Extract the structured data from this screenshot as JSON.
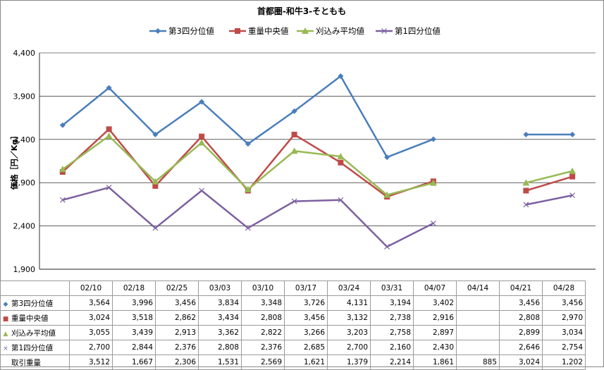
{
  "chart_data": {
    "type": "line",
    "title": "首都圏-和牛3-そともも",
    "ylabel": "価格［円／Kg］",
    "ylim": [
      1900,
      4400
    ],
    "yticks": [
      1900,
      2400,
      2900,
      3400,
      3900,
      4400
    ],
    "ytick_labels": [
      "1,900",
      "2,400",
      "2,900",
      "3,400",
      "3,900",
      "4,400"
    ],
    "grid": "horizontal",
    "legend_position": "top",
    "categories": [
      "02/10",
      "02/18",
      "02/25",
      "03/03",
      "03/10",
      "03/17",
      "03/24",
      "03/31",
      "04/07",
      "04/14",
      "04/21",
      "04/28"
    ],
    "series": [
      {
        "name": "第3四分位値",
        "color": "#4a7ebb",
        "marker": "diamond",
        "values": [
          3564,
          3996,
          3456,
          3834,
          3348,
          3726,
          4131,
          3194,
          3402,
          null,
          3456,
          3456
        ],
        "display": [
          "3,564",
          "3,996",
          "3,456",
          "3,834",
          "3,348",
          "3,726",
          "4,131",
          "3,194",
          "3,402",
          "",
          "3,456",
          "3,456"
        ]
      },
      {
        "name": "重量中央値",
        "color": "#be4b48",
        "marker": "square",
        "values": [
          3024,
          3518,
          2862,
          3434,
          2808,
          3456,
          3132,
          2738,
          2916,
          null,
          2808,
          2970
        ],
        "display": [
          "3,024",
          "3,518",
          "2,862",
          "3,434",
          "2,808",
          "3,456",
          "3,132",
          "2,738",
          "2,916",
          "",
          "2,808",
          "2,970"
        ]
      },
      {
        "name": "刈込み平均値",
        "color": "#98b954",
        "marker": "triangle",
        "values": [
          3055,
          3439,
          2913,
          3362,
          2822,
          3266,
          3203,
          2758,
          2897,
          null,
          2899,
          3034
        ],
        "display": [
          "3,055",
          "3,439",
          "2,913",
          "3,362",
          "2,822",
          "3,266",
          "3,203",
          "2,758",
          "2,897",
          "",
          "2,899",
          "3,034"
        ]
      },
      {
        "name": "第1四分位値",
        "color": "#7d60a0",
        "marker": "x",
        "values": [
          2700,
          2844,
          2376,
          2808,
          2376,
          2685,
          2700,
          2160,
          2430,
          null,
          2646,
          2754
        ],
        "display": [
          "2,700",
          "2,844",
          "2,376",
          "2,808",
          "2,376",
          "2,685",
          "2,700",
          "2,160",
          "2,430",
          "",
          "2,646",
          "2,754"
        ]
      }
    ],
    "table_extra_row": {
      "name": "取引重量",
      "values": [
        3512,
        1667,
        2306,
        1531,
        2569,
        1621,
        1379,
        2214,
        1861,
        885,
        3024,
        1202
      ],
      "display": [
        "3,512",
        "1,667",
        "2,306",
        "1,531",
        "2,569",
        "1,621",
        "1,379",
        "2,214",
        "1,861",
        "885",
        "3,024",
        "1,202"
      ]
    }
  }
}
